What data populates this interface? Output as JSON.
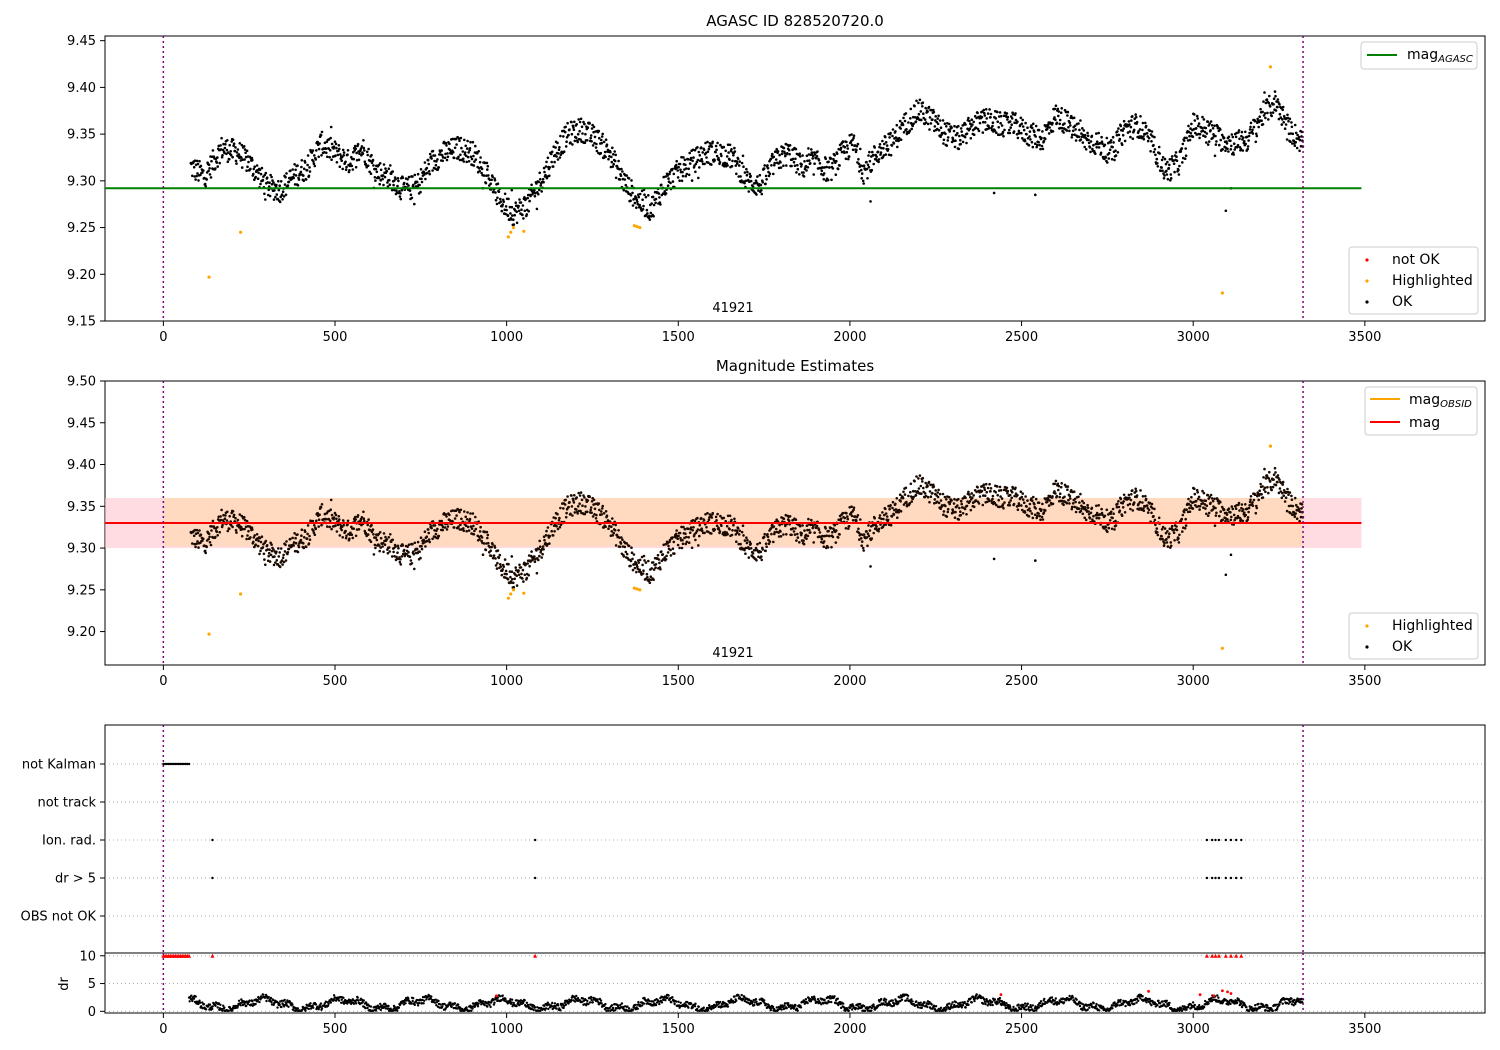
{
  "chart_data": [
    {
      "type": "scatter",
      "title": "AGASC ID 828520720.0",
      "xlim": [
        -170,
        3850
      ],
      "ylim": [
        9.15,
        9.455
      ],
      "xticks": [
        0,
        500,
        1000,
        1500,
        2000,
        2500,
        3000,
        3500
      ],
      "yticks": [
        9.15,
        9.2,
        9.25,
        9.3,
        9.35,
        9.4,
        9.45
      ],
      "vlines": [
        0,
        3320
      ],
      "hline": {
        "name": "mag_AGASC",
        "value": 9.292,
        "color": "#008000",
        "x_range": [
          -170,
          3490
        ]
      },
      "annotation": {
        "text": "41921",
        "x": 1660,
        "y": 9.16
      },
      "legend_upper": [
        {
          "label": "mag",
          "sub": "AGASC",
          "color": "#008000"
        }
      ],
      "legend_lower": [
        {
          "label": "not OK",
          "color": "#ff0000"
        },
        {
          "label": "Highlighted",
          "color": "#ffa500"
        },
        {
          "label": "OK",
          "color": "#000000"
        }
      ],
      "series": [
        {
          "name": "OK",
          "color": "#000000",
          "description": "light curve, approximately 9.26–9.40 over x 80–3320"
        },
        {
          "name": "Highlighted",
          "color": "#ffa500",
          "points": [
            [
              133,
              9.197
            ],
            [
              225,
              9.245
            ],
            [
              1005,
              9.24
            ],
            [
              1012,
              9.245
            ],
            [
              1020,
              9.25
            ],
            [
              1050,
              9.246
            ],
            [
              1372,
              9.252
            ],
            [
              1380,
              9.251
            ],
            [
              1388,
              9.25
            ],
            [
              3085,
              9.18
            ],
            [
              3225,
              9.422
            ]
          ]
        }
      ]
    },
    {
      "type": "scatter",
      "title": "Magnitude Estimates",
      "xlim": [
        -170,
        3850
      ],
      "ylim": [
        9.16,
        9.5
      ],
      "xticks": [
        0,
        500,
        1000,
        1500,
        2000,
        2500,
        3000,
        3500
      ],
      "yticks": [
        9.2,
        9.25,
        9.3,
        9.35,
        9.4,
        9.45,
        9.5
      ],
      "vlines": [
        0,
        3320
      ],
      "hline": {
        "name": "mag",
        "value": 9.33,
        "color": "#ff0000",
        "x_range": [
          -170,
          3490
        ]
      },
      "band_obsid": {
        "y": [
          9.302,
          9.36
        ],
        "x_range": [
          -170,
          3490
        ],
        "color": "#ffdab9"
      },
      "band_mag": {
        "y": [
          9.3,
          9.36
        ],
        "x_range": [
          -170,
          3490
        ],
        "color": "#ffc0cb"
      },
      "annotation": {
        "text": "41921",
        "x": 1660,
        "y": 9.17
      },
      "legend_upper": [
        {
          "label": "mag",
          "sub": "OBSID",
          "color": "#ffa500"
        },
        {
          "label": "mag",
          "sub": "",
          "color": "#ff0000"
        }
      ],
      "legend_lower": [
        {
          "label": "Highlighted",
          "color": "#ffa500"
        },
        {
          "label": "OK",
          "color": "#000000"
        }
      ],
      "series": [
        {
          "name": "OK",
          "color": "#000000"
        },
        {
          "name": "Highlighted",
          "color": "#ffa500",
          "points": [
            [
              133,
              9.197
            ],
            [
              225,
              9.245
            ],
            [
              1005,
              9.24
            ],
            [
              1012,
              9.245
            ],
            [
              1020,
              9.25
            ],
            [
              1050,
              9.246
            ],
            [
              1372,
              9.252
            ],
            [
              1380,
              9.251
            ],
            [
              1388,
              9.25
            ],
            [
              3085,
              9.18
            ],
            [
              3225,
              9.422
            ]
          ]
        }
      ]
    },
    {
      "type": "scatter",
      "title": "",
      "categories": [
        "not Kalman",
        "not track",
        "Ion. rad.",
        "dr > 5",
        "OBS not OK"
      ],
      "xlim": [
        -170,
        3850
      ],
      "flags": {
        "not Kalman": {
          "x_from": 0,
          "x_to": 75,
          "step": 5
        },
        "not track": {
          "x": []
        },
        "Ion. rad.": {
          "x": [
            143,
            1083,
            3040,
            3055,
            3065,
            3075,
            3095,
            3110,
            3125,
            3140
          ]
        },
        "dr > 5": {
          "x": [
            143,
            1083,
            3040,
            3055,
            3065,
            3075,
            3095,
            3110,
            3125,
            3140
          ]
        },
        "OBS not OK": {
          "x": []
        }
      },
      "vlines": [
        0,
        3320
      ]
    },
    {
      "type": "scatter",
      "title": "",
      "ylabel": "dr",
      "xlim": [
        -170,
        3850
      ],
      "ylim": [
        -0.3,
        10.5
      ],
      "xticks": [
        0,
        500,
        1000,
        1500,
        2000,
        2500,
        3000,
        3500
      ],
      "yticks": [
        0,
        5,
        10
      ],
      "vlines": [
        0,
        3320
      ],
      "clipped_at_10": [
        0,
        5,
        10,
        15,
        20,
        25,
        30,
        35,
        40,
        45,
        50,
        55,
        60,
        65,
        70,
        75,
        143,
        1083,
        3040,
        3055,
        3065,
        3075,
        3095,
        3110,
        3125,
        3140
      ],
      "red_points": [
        [
          970,
          2.8
        ],
        [
          2440,
          3.0
        ],
        [
          2870,
          3.6
        ],
        [
          3020,
          3.0
        ],
        [
          3060,
          2.8
        ],
        [
          3085,
          3.7
        ],
        [
          3100,
          3.5
        ],
        [
          3110,
          3.2
        ]
      ],
      "series": [
        {
          "name": "dr",
          "color": "#000000",
          "description": "values mostly between 0 and 3 over x 75–3320"
        }
      ]
    }
  ]
}
